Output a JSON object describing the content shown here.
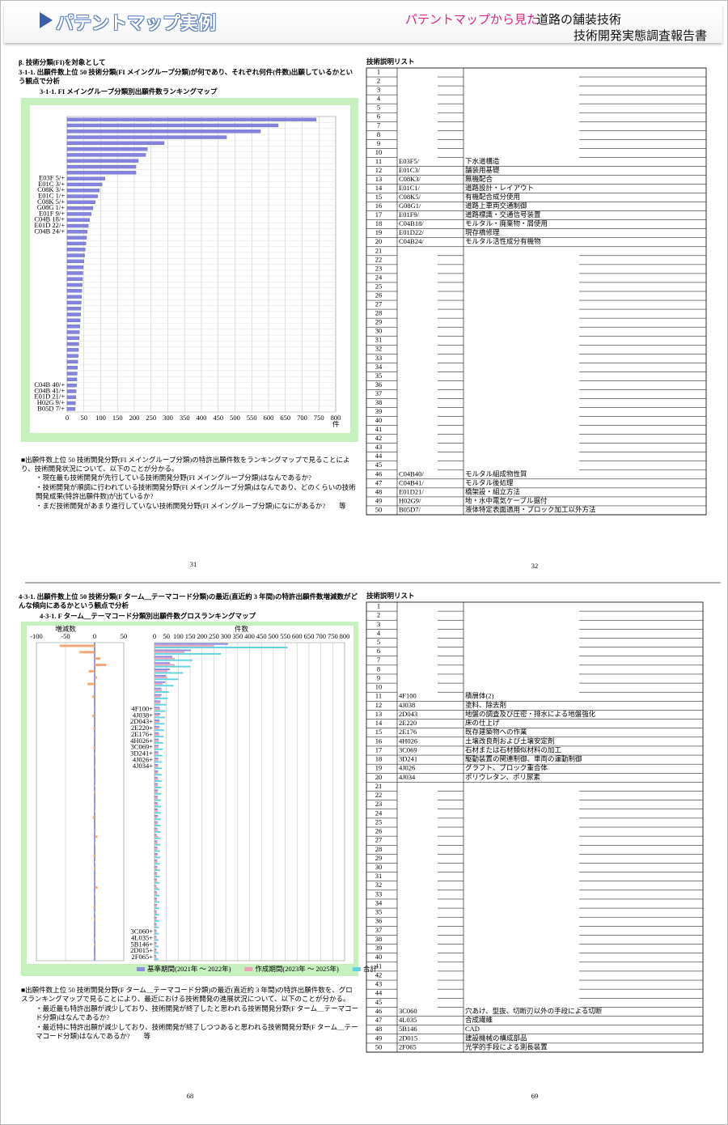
{
  "header": {
    "title": "パテントマップ実例",
    "subtitle": "パテントマップから見た",
    "theme": "道路の舗装技術",
    "report": "技術開発実態調査報告書"
  },
  "section1": {
    "heading": "β. 技術分類(FI)を対象として",
    "subheading": "3-1-1. 出願件数上位 50 技術分類(FI メイングループ分類)が何であり、それぞれ何件(件数)出願しているかという観点で分析",
    "notes": [
      "■出願件数上位 50 技術開発分野(FI メイングループ分類)の特許出願件数をランキングマップで見ることにより、技術開発状況について、以下のことが分かる。",
      "・現在最も技術開発が先行している技術開発分野(FI メイングループ分類)はなんであるか?",
      "・技術開発が順調に行われている技術開発分野(FI メイングループ分類)はなんであり、どのくらいの技術開発成果(特許出願件数)が出ているか?",
      "・まだ技術開発があまり進行していない技術開発分野(FI メイングループ分類)になにがあるか?　　等"
    ],
    "page": "31"
  },
  "table1": {
    "title": "技術説明リスト",
    "page": "32",
    "rows": [
      {
        "no": 1
      },
      {
        "no": 2
      },
      {
        "no": 3
      },
      {
        "no": 4
      },
      {
        "no": 5
      },
      {
        "no": 6
      },
      {
        "no": 7
      },
      {
        "no": 8
      },
      {
        "no": 9
      },
      {
        "no": 10
      },
      {
        "no": 11,
        "code": "E03F5/",
        "text": "下水道構造"
      },
      {
        "no": 12,
        "code": "E01C3/",
        "text": "舗装用基礎"
      },
      {
        "no": 13,
        "code": "C08K3/",
        "text": "無機配合"
      },
      {
        "no": 14,
        "code": "E01C1/",
        "text": "道路設計・レイアウト"
      },
      {
        "no": 15,
        "code": "C08K5/",
        "text": "有機配合成分使用"
      },
      {
        "no": 16,
        "code": "G08G1/",
        "text": "道路上車両交通制御"
      },
      {
        "no": 17,
        "code": "E01F9/",
        "text": "道路標識・交通信号装置"
      },
      {
        "no": 18,
        "code": "C04B18/",
        "text": "モルタル・廃棄物・屑使用"
      },
      {
        "no": 19,
        "code": "E01D22/",
        "text": "現存橋修理"
      },
      {
        "no": 20,
        "code": "C04B24/",
        "text": "モルタル活性成分有機物"
      },
      {
        "no": 21
      },
      {
        "no": 22
      },
      {
        "no": 23
      },
      {
        "no": 24
      },
      {
        "no": 25
      },
      {
        "no": 26
      },
      {
        "no": 27
      },
      {
        "no": 28
      },
      {
        "no": 29
      },
      {
        "no": 30
      },
      {
        "no": 31
      },
      {
        "no": 32
      },
      {
        "no": 33
      },
      {
        "no": 34
      },
      {
        "no": 35
      },
      {
        "no": 36
      },
      {
        "no": 37
      },
      {
        "no": 38
      },
      {
        "no": 39
      },
      {
        "no": 40
      },
      {
        "no": 41
      },
      {
        "no": 42
      },
      {
        "no": 43
      },
      {
        "no": 44
      },
      {
        "no": 45
      },
      {
        "no": 46,
        "code": "C04B40/",
        "text": "モルタル組成物性質"
      },
      {
        "no": 47,
        "code": "C04B41/",
        "text": "モルタル後処理"
      },
      {
        "no": 48,
        "code": "E01D21/",
        "text": "橋架設・組立方法"
      },
      {
        "no": 49,
        "code": "H02G9/",
        "text": "地・水中電気ケーブル据付"
      },
      {
        "no": 50,
        "code": "B05D7/",
        "text": "液体特定表面適用・ブロック加工以外方法"
      }
    ]
  },
  "section2": {
    "subheading": "4-3-1. 出願件数上位 50 技術分類(F ターム＿テーマコード分類)の最近(直近約 3 年間)の特許出願件数増減数がどんな傾向にあるかという観点で分析",
    "notes": [
      "■出願件数上位 50 技術開発分野(F ターム＿テーマコード分類)の最近(直近約 3 年間)の特許出願件数を、グロスランキングマップで見ることにより、最近における技術開発の進展状況について、以下のことが分かる。",
      "・最近最も特許出願が減少しており、技術開発が終了したと思われる技術開発分野(F ターム＿テーマコード分類)はなんであるか?",
      "・最近特に特許出願が減少しており、技術開発が終了しつつあると思われる技術開発分野(F ターム＿テーマコード分類)はなんであるか?　　等"
    ],
    "page": "68"
  },
  "table2": {
    "title": "技術説明リスト",
    "page": "69",
    "rows": [
      {
        "no": 1
      },
      {
        "no": 2
      },
      {
        "no": 3
      },
      {
        "no": 4
      },
      {
        "no": 5
      },
      {
        "no": 6
      },
      {
        "no": 7
      },
      {
        "no": 8
      },
      {
        "no": 9
      },
      {
        "no": 10
      },
      {
        "no": 11,
        "code": "4F100",
        "text": "積層体(2)"
      },
      {
        "no": 12,
        "code": "4J038",
        "text": "塗料、除去剤"
      },
      {
        "no": 13,
        "code": "2D043",
        "text": "地盤の調査及び圧密・排水による地盤強化"
      },
      {
        "no": 14,
        "code": "2E220",
        "text": "床の仕上げ"
      },
      {
        "no": 15,
        "code": "2E176",
        "text": "既存建築物への作業"
      },
      {
        "no": 16,
        "code": "4H026",
        "text": "土壌改良剤および土壌安定剤"
      },
      {
        "no": 17,
        "code": "3C069",
        "text": "石材または石材類似材料の加工"
      },
      {
        "no": 18,
        "code": "3D241",
        "text": "駆動装置の関連制御、車両の運動制御"
      },
      {
        "no": 19,
        "code": "4J026",
        "text": "グラフト、ブロック重合体"
      },
      {
        "no": 20,
        "code": "4J034",
        "text": "ポリウレタン、ポリ尿素"
      },
      {
        "no": 21
      },
      {
        "no": 22
      },
      {
        "no": 23
      },
      {
        "no": 24
      },
      {
        "no": 25
      },
      {
        "no": 26
      },
      {
        "no": 27
      },
      {
        "no": 28
      },
      {
        "no": 29
      },
      {
        "no": 30
      },
      {
        "no": 31
      },
      {
        "no": 32
      },
      {
        "no": 33
      },
      {
        "no": 34
      },
      {
        "no": 35
      },
      {
        "no": 36
      },
      {
        "no": 37
      },
      {
        "no": 38
      },
      {
        "no": 39
      },
      {
        "no": 40
      },
      {
        "no": 41
      },
      {
        "no": 42
      },
      {
        "no": 43
      },
      {
        "no": 44
      },
      {
        "no": 45
      },
      {
        "no": 46,
        "code": "3C060",
        "text": "穴あけ、型抜、切断刃以外の手段による切断"
      },
      {
        "no": 47,
        "code": "4L035",
        "text": "合成繊維"
      },
      {
        "no": 48,
        "code": "5B146",
        "text": "CAD"
      },
      {
        "no": 49,
        "code": "2D015",
        "text": "建設機械の構成部品"
      },
      {
        "no": 50,
        "code": "2F065",
        "text": "光学的手段による測長装置"
      }
    ]
  },
  "chart_data": [
    {
      "type": "hbar",
      "title": "3-1-1. FI メイングループ分類別出願件数ランキングマップ",
      "x_unit": "件",
      "color": "#8484e0",
      "grid": true,
      "categories": [
        null,
        null,
        null,
        null,
        null,
        null,
        null,
        null,
        null,
        null,
        "E03F 5/+",
        "E01C 3/+",
        "C08K 3/+",
        "E01C 1/+",
        "C08K 5/+",
        "G08G 1/+",
        "E01F 9/+",
        "C04B 18/+",
        "E01D 22/+",
        "C04B 24/+",
        null,
        null,
        null,
        null,
        null,
        null,
        null,
        null,
        null,
        null,
        null,
        null,
        null,
        null,
        null,
        null,
        null,
        null,
        null,
        null,
        null,
        null,
        null,
        null,
        null,
        "C04B 40/+",
        "C04B 41/+",
        "E01D 21/+",
        "H02G 9/+",
        "B05D 7/+"
      ],
      "values": [
        742,
        629,
        576,
        475,
        289,
        239,
        234,
        212,
        205,
        205,
        113,
        104,
        96,
        91,
        84,
        77,
        72,
        67,
        63,
        60,
        58,
        56,
        54,
        52,
        50,
        48,
        47,
        46,
        45,
        44,
        43,
        42,
        41,
        40,
        39,
        38,
        37,
        36,
        35,
        34,
        33,
        32,
        31,
        30,
        29,
        28,
        27,
        26,
        25,
        24
      ],
      "xlim": [
        0,
        800
      ],
      "xticks": [
        0,
        50,
        100,
        150,
        200,
        250,
        300,
        350,
        400,
        450,
        500,
        550,
        600,
        650,
        700,
        750,
        800
      ]
    },
    {
      "type": "gross_ranking",
      "title": "4-3-1. F ターム＿テーマコード分類別出願件数グロスランキングマップ",
      "grid": true,
      "categories": [
        null,
        null,
        null,
        null,
        null,
        null,
        null,
        null,
        null,
        null,
        "4F100+",
        "4J038+",
        "2D043+",
        "2E220+",
        "2E176+",
        "4H026+",
        "3C069+",
        "3D241+",
        "4J026+",
        "4J034+",
        null,
        null,
        null,
        null,
        null,
        null,
        null,
        null,
        null,
        null,
        null,
        null,
        null,
        null,
        null,
        null,
        null,
        null,
        null,
        null,
        null,
        null,
        null,
        null,
        null,
        "3C060+",
        "4L035+",
        "5B146+",
        "2D015+",
        "2F065+"
      ],
      "change": {
        "label": "増減数",
        "color": "#f0a878",
        "xlim": [
          -100,
          50
        ],
        "xticks": [
          -100,
          -50,
          0,
          50
        ],
        "values": [
          -60,
          -26,
          10,
          20,
          -10,
          4,
          -12,
          2,
          -4,
          0,
          2,
          -4,
          0,
          -2,
          2,
          0,
          -2,
          1,
          0,
          1,
          0,
          2,
          1,
          -1,
          0,
          2,
          1,
          -3,
          0,
          2,
          5,
          1,
          0,
          -2,
          1,
          -1,
          0,
          2,
          5,
          1,
          0,
          -2,
          1,
          -1,
          0,
          2,
          1,
          -1,
          0,
          2
        ]
      },
      "count": {
        "label": "件数",
        "xlim": [
          0,
          800
        ],
        "xticks": [
          0,
          50,
          100,
          150,
          200,
          250,
          300,
          350,
          400,
          450,
          500,
          550,
          600,
          650,
          700,
          750,
          800
        ]
      },
      "series": [
        {
          "name": "基準期間(2021年 ～ 2022年)",
          "color": "#8c8ce0",
          "values": [
            310,
            153,
            75,
            65,
            65,
            48,
            46,
            29,
            30,
            25,
            22,
            24,
            21,
            21,
            18,
            18,
            18,
            16,
            16,
            15,
            15,
            14,
            14,
            15,
            14,
            13,
            13,
            15,
            13,
            12,
            10,
            12,
            12,
            13,
            11,
            12,
            11,
            10,
            8,
            10,
            10,
            11,
            9,
            10,
            9,
            8,
            8,
            9,
            8,
            7
          ]
        },
        {
          "name": "作成期間(2023年 ～ 2025年)",
          "color": "#f0a0b8",
          "values": [
            250,
            127,
            85,
            85,
            55,
            52,
            34,
            31,
            26,
            25,
            24,
            20,
            21,
            19,
            20,
            18,
            16,
            17,
            16,
            16,
            15,
            16,
            15,
            14,
            14,
            15,
            14,
            12,
            13,
            14,
            15,
            13,
            12,
            11,
            12,
            11,
            11,
            12,
            13,
            11,
            10,
            9,
            10,
            9,
            9,
            10,
            9,
            8,
            8,
            9
          ]
        },
        {
          "name": "合計",
          "color": "#60d4e0",
          "values": [
            560,
            280,
            160,
            150,
            120,
            100,
            80,
            60,
            56,
            50,
            46,
            44,
            42,
            40,
            38,
            36,
            34,
            33,
            32,
            31,
            30,
            30,
            29,
            29,
            28,
            28,
            27,
            27,
            26,
            26,
            25,
            25,
            24,
            24,
            23,
            23,
            22,
            22,
            21,
            21,
            20,
            20,
            19,
            19,
            18,
            18,
            17,
            17,
            16,
            16
          ]
        }
      ]
    }
  ]
}
